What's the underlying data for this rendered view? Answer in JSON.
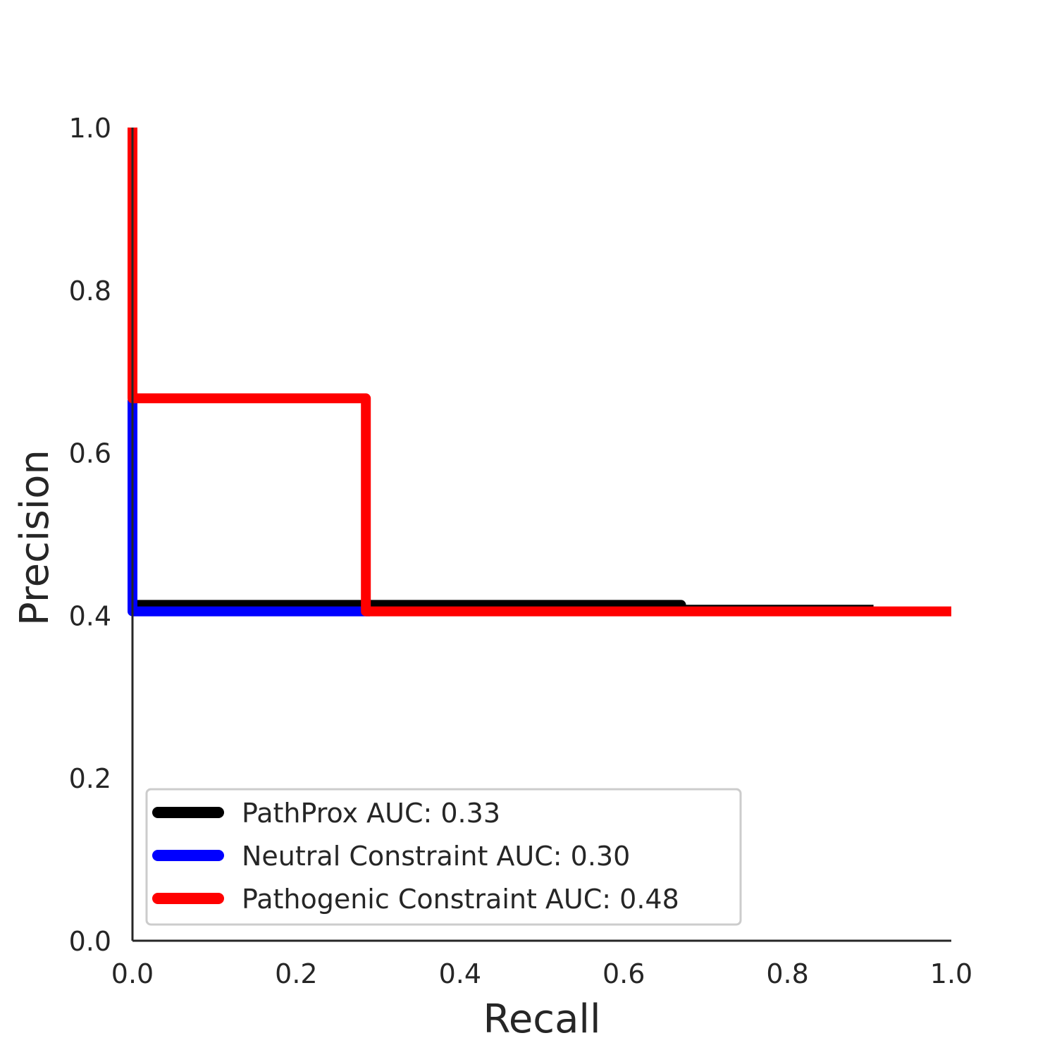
{
  "chart_data": {
    "type": "line",
    "title": "",
    "xlabel": "Recall",
    "ylabel": "Precision",
    "xlim": [
      0.0,
      1.0
    ],
    "ylim": [
      0.0,
      1.0
    ],
    "xticks": [
      "0.0",
      "0.2",
      "0.4",
      "0.6",
      "0.8",
      "1.0"
    ],
    "yticks": [
      "0.0",
      "0.2",
      "0.4",
      "0.6",
      "0.8",
      "1.0"
    ],
    "grid": false,
    "legend_position": "lower-left",
    "series": [
      {
        "name": "PathProx AUC:  0.33",
        "color": "#000000",
        "x": [
          0.0,
          0.0,
          0.67,
          0.67,
          0.905
        ],
        "y": [
          0.405,
          0.413,
          0.413,
          0.407,
          0.407
        ]
      },
      {
        "name": "Neutral Constraint AUC:  0.30",
        "color": "#0000ff",
        "x": [
          0.0,
          0.0,
          0.29
        ],
        "y": [
          0.665,
          0.405,
          0.405
        ]
      },
      {
        "name": "Pathogenic Constraint AUC:  0.48",
        "color": "#ff0000",
        "x": [
          0.0,
          0.0,
          0.285,
          0.285,
          1.0
        ],
        "y": [
          1.0,
          0.667,
          0.667,
          0.405,
          0.405
        ]
      }
    ]
  }
}
